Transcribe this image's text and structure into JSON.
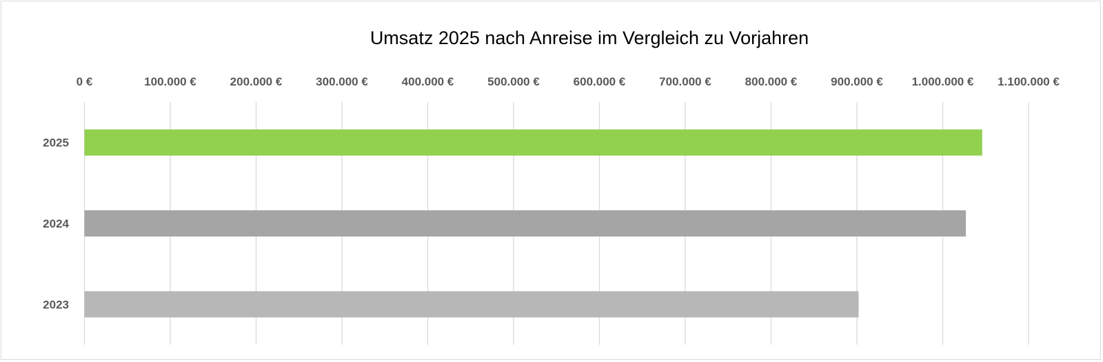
{
  "chart_data": {
    "type": "bar",
    "orientation": "horizontal",
    "title": "Umsatz 2025 nach Anreise im Vergleich zu Vorjahren",
    "categories": [
      "2025",
      "2024",
      "2023"
    ],
    "values": [
      1046000,
      1027000,
      902000
    ],
    "colors": [
      "#92d050",
      "#a5a5a5",
      "#b7b7b7"
    ],
    "xlim": [
      0,
      1100000
    ],
    "xticks": [
      0,
      100000,
      200000,
      300000,
      400000,
      500000,
      600000,
      700000,
      800000,
      900000,
      1000000,
      1100000
    ],
    "xtick_labels": [
      "0 €",
      "100.000 €",
      "200.000 €",
      "300.000 €",
      "400.000 €",
      "500.000 €",
      "600.000 €",
      "700.000 €",
      "800.000 €",
      "900.000 €",
      "1.000.000 €",
      "1.100.000 €"
    ],
    "xaxis_position": "top",
    "grid": true,
    "legend": "none",
    "xlabel": "",
    "ylabel": ""
  }
}
